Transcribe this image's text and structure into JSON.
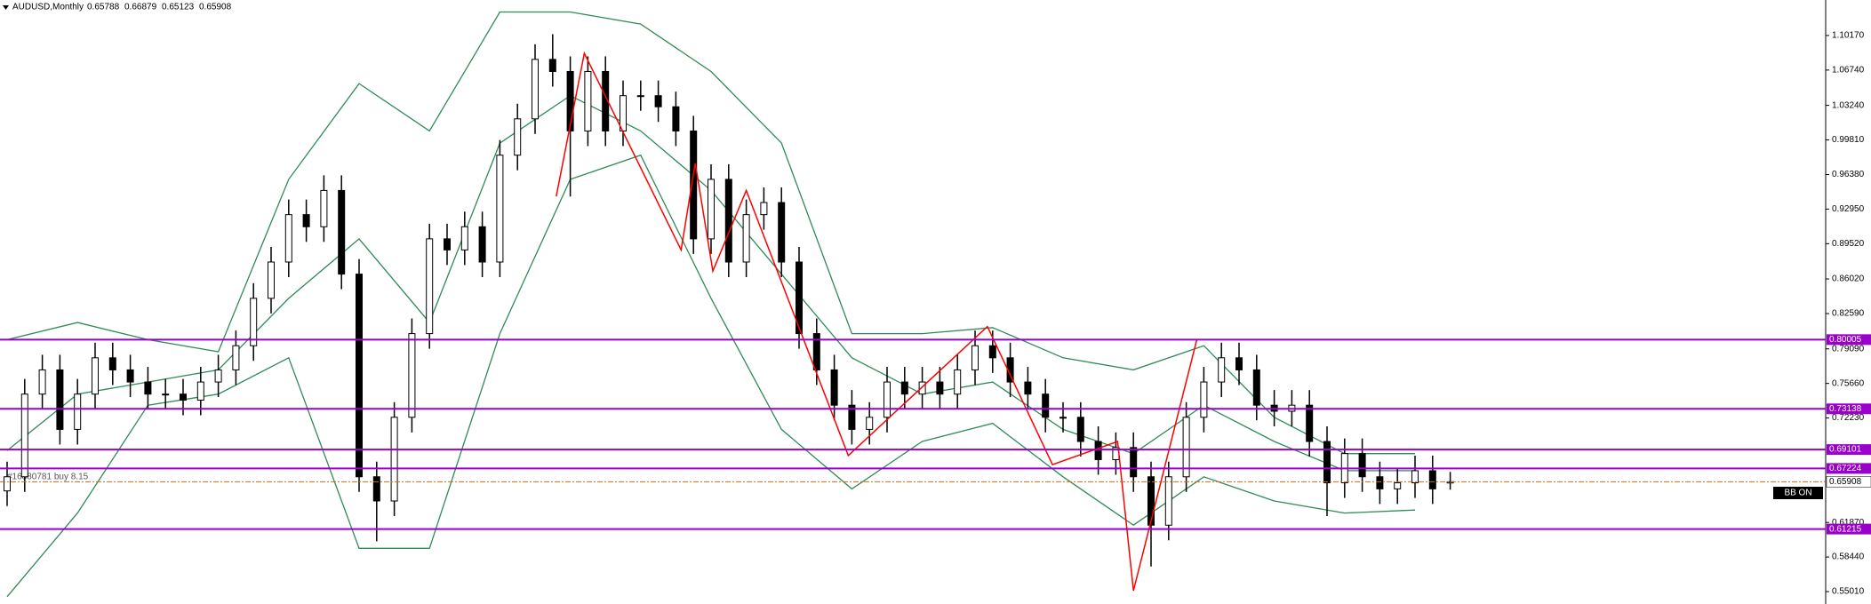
{
  "chart_data": {
    "type": "candlestick",
    "title": "AUDUSD,Monthly",
    "candles": [
      [
        0.65,
        0.679,
        0.635,
        0.664
      ],
      [
        0.664,
        0.761,
        0.649,
        0.746
      ],
      [
        0.746,
        0.785,
        0.731,
        0.77
      ],
      [
        0.77,
        0.785,
        0.696,
        0.711
      ],
      [
        0.711,
        0.761,
        0.696,
        0.746
      ],
      [
        0.746,
        0.797,
        0.731,
        0.782
      ],
      [
        0.782,
        0.797,
        0.755,
        0.77
      ],
      [
        0.77,
        0.785,
        0.743,
        0.758
      ],
      [
        0.758,
        0.773,
        0.731,
        0.746
      ],
      [
        0.746,
        0.761,
        0.731,
        0.746
      ],
      [
        0.746,
        0.761,
        0.725,
        0.74
      ],
      [
        0.74,
        0.773,
        0.725,
        0.758
      ],
      [
        0.758,
        0.785,
        0.743,
        0.77
      ],
      [
        0.77,
        0.809,
        0.755,
        0.794
      ],
      [
        0.794,
        0.856,
        0.779,
        0.841
      ],
      [
        0.841,
        0.892,
        0.826,
        0.877
      ],
      [
        0.877,
        0.939,
        0.862,
        0.924
      ],
      [
        0.924,
        0.939,
        0.897,
        0.912
      ],
      [
        0.912,
        0.963,
        0.897,
        0.948
      ],
      [
        0.948,
        0.963,
        0.85,
        0.865
      ],
      [
        0.865,
        0.88,
        0.649,
        0.664
      ],
      [
        0.664,
        0.679,
        0.6,
        0.64
      ],
      [
        0.64,
        0.738,
        0.625,
        0.723
      ],
      [
        0.723,
        0.821,
        0.708,
        0.806
      ],
      [
        0.806,
        0.915,
        0.791,
        0.9
      ],
      [
        0.9,
        0.915,
        0.874,
        0.889
      ],
      [
        0.889,
        0.927,
        0.874,
        0.912
      ],
      [
        0.912,
        0.927,
        0.862,
        0.877
      ],
      [
        0.877,
        0.998,
        0.862,
        0.983
      ],
      [
        0.983,
        1.034,
        0.968,
        1.019
      ],
      [
        1.019,
        1.093,
        1.004,
        1.078
      ],
      [
        1.078,
        1.103,
        1.051,
        1.066
      ],
      [
        1.066,
        1.081,
        0.942,
        1.007
      ],
      [
        1.007,
        1.081,
        0.992,
        1.066
      ],
      [
        1.066,
        1.081,
        0.992,
        1.007
      ],
      [
        1.007,
        1.057,
        0.992,
        1.042
      ],
      [
        1.042,
        1.057,
        1.027,
        1.042
      ],
      [
        1.042,
        1.057,
        1.016,
        1.031
      ],
      [
        1.031,
        1.046,
        0.992,
        1.007
      ],
      [
        1.007,
        1.022,
        0.885,
        0.9
      ],
      [
        0.9,
        0.974,
        0.885,
        0.959
      ],
      [
        0.959,
        0.974,
        0.862,
        0.877
      ],
      [
        0.877,
        0.939,
        0.862,
        0.924
      ],
      [
        0.924,
        0.951,
        0.909,
        0.936
      ],
      [
        0.936,
        0.951,
        0.862,
        0.877
      ],
      [
        0.877,
        0.892,
        0.791,
        0.806
      ],
      [
        0.806,
        0.821,
        0.755,
        0.77
      ],
      [
        0.77,
        0.785,
        0.72,
        0.735
      ],
      [
        0.735,
        0.75,
        0.696,
        0.711
      ],
      [
        0.711,
        0.738,
        0.696,
        0.723
      ],
      [
        0.723,
        0.773,
        0.708,
        0.758
      ],
      [
        0.758,
        0.773,
        0.731,
        0.746
      ],
      [
        0.746,
        0.773,
        0.731,
        0.758
      ],
      [
        0.758,
        0.773,
        0.731,
        0.746
      ],
      [
        0.746,
        0.785,
        0.731,
        0.77
      ],
      [
        0.77,
        0.809,
        0.755,
        0.794
      ],
      [
        0.794,
        0.809,
        0.767,
        0.782
      ],
      [
        0.782,
        0.797,
        0.743,
        0.758
      ],
      [
        0.758,
        0.773,
        0.731,
        0.746
      ],
      [
        0.746,
        0.761,
        0.708,
        0.723
      ],
      [
        0.723,
        0.738,
        0.708,
        0.723
      ],
      [
        0.723,
        0.738,
        0.684,
        0.699
      ],
      [
        0.699,
        0.714,
        0.666,
        0.681
      ],
      [
        0.681,
        0.708,
        0.666,
        0.693
      ],
      [
        0.693,
        0.708,
        0.649,
        0.664
      ],
      [
        0.664,
        0.679,
        0.575,
        0.616
      ],
      [
        0.616,
        0.679,
        0.601,
        0.664
      ],
      [
        0.664,
        0.738,
        0.649,
        0.723
      ],
      [
        0.723,
        0.773,
        0.708,
        0.758
      ],
      [
        0.758,
        0.797,
        0.743,
        0.782
      ],
      [
        0.782,
        0.797,
        0.755,
        0.77
      ],
      [
        0.77,
        0.785,
        0.72,
        0.735
      ],
      [
        0.735,
        0.75,
        0.714,
        0.729
      ],
      [
        0.729,
        0.75,
        0.714,
        0.735
      ],
      [
        0.735,
        0.75,
        0.684,
        0.699
      ],
      [
        0.699,
        0.714,
        0.625,
        0.658
      ],
      [
        0.658,
        0.702,
        0.643,
        0.687
      ],
      [
        0.687,
        0.702,
        0.649,
        0.664
      ],
      [
        0.664,
        0.679,
        0.637,
        0.652
      ],
      [
        0.652,
        0.673,
        0.637,
        0.658
      ],
      [
        0.658,
        0.685,
        0.643,
        0.67
      ],
      [
        0.67,
        0.685,
        0.637,
        0.652
      ],
      [
        0.65788,
        0.66879,
        0.65123,
        0.65908
      ]
    ],
    "bands": {
      "color": "#2e8b57",
      "x": [
        0,
        4,
        8,
        12,
        16,
        20,
        24,
        28,
        32,
        36,
        40,
        44,
        48,
        52,
        56,
        60,
        64,
        68,
        72,
        76,
        80
      ],
      "upper": [
        0.8,
        0.817,
        0.8,
        0.788,
        0.959,
        1.054,
        1.007,
        1.125,
        1.125,
        1.113,
        1.066,
        0.995,
        0.806,
        0.806,
        0.812,
        0.782,
        0.77,
        0.794,
        0.723,
        0.687,
        0.687
      ],
      "middle": [
        0.69,
        0.746,
        0.758,
        0.77,
        0.841,
        0.9,
        0.817,
        0.995,
        1.042,
        1.007,
        0.948,
        0.865,
        0.782,
        0.746,
        0.758,
        0.711,
        0.687,
        0.735,
        0.699,
        0.67,
        0.67
      ],
      "lower": [
        0.545,
        0.628,
        0.735,
        0.746,
        0.782,
        0.593,
        0.593,
        0.806,
        0.959,
        0.983,
        0.841,
        0.711,
        0.652,
        0.699,
        0.717,
        0.664,
        0.616,
        0.664,
        0.64,
        0.628,
        0.631
      ]
    },
    "zigzag": {
      "color": "#ff0000",
      "x": [
        31.2,
        32.8,
        38.3,
        39.1,
        40.1,
        42.0,
        47.8,
        55.7,
        59.4,
        63.1,
        64.0,
        67.6
      ],
      "values": [
        0.942,
        1.084,
        0.889,
        0.975,
        0.868,
        0.948,
        0.685,
        0.813,
        0.676,
        0.699,
        0.551,
        0.8
      ]
    },
    "levels": [
      0.80005,
      0.73138,
      0.69101,
      0.67224,
      0.61215
    ],
    "level_color": "#9900cc",
    "last": 0.65908,
    "ylim": [
      0.5378,
      1.1369
    ],
    "yticks": [
      {
        "value": 1.1017,
        "label": "1.10170"
      },
      {
        "value": 1.0674,
        "label": "1.06740"
      },
      {
        "value": 1.0324,
        "label": "1.03240"
      },
      {
        "value": 0.9981,
        "label": "0.99810"
      },
      {
        "value": 0.9638,
        "label": "0.96380"
      },
      {
        "value": 0.9295,
        "label": "0.92950"
      },
      {
        "value": 0.8952,
        "label": "0.89520"
      },
      {
        "value": 0.8602,
        "label": "0.86020"
      },
      {
        "value": 0.8259,
        "label": "0.82590"
      },
      {
        "value": 0.7909,
        "label": "0.79090"
      },
      {
        "value": 0.7566,
        "label": "0.75660"
      },
      {
        "value": 0.7223,
        "label": "0.72230"
      },
      {
        "value": 0.6187,
        "label": "0.61870"
      },
      {
        "value": 0.5844,
        "label": "0.58440"
      },
      {
        "value": 0.5501,
        "label": "0.55010"
      }
    ],
    "trade_label": "#16880781 buy 8.15",
    "button": "BB ON"
  }
}
